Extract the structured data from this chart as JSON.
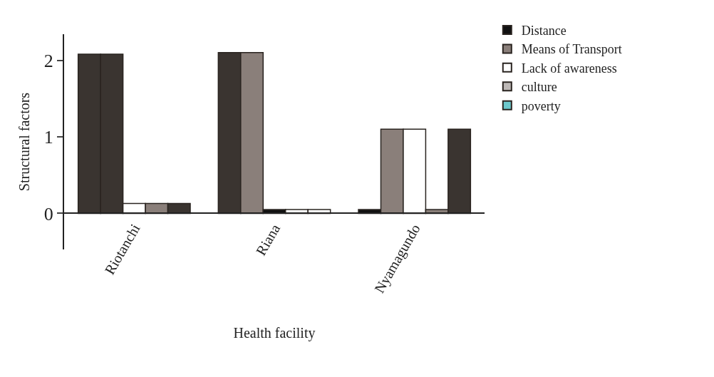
{
  "chart_data": {
    "type": "bar",
    "xlabel": "Health facility",
    "ylabel": "Structural factors",
    "categories": [
      "Riotanchi",
      "Riana",
      "Nyamagundo"
    ],
    "series": [
      {
        "name": "Distance",
        "color": "#111111",
        "colors": [
          "#3a3430",
          "#3a3430",
          "#111111"
        ],
        "values": [
          2.08,
          2.1,
          0.05
        ]
      },
      {
        "name": "Means of Transport",
        "color": "#8a7f7a",
        "colors": [
          "#3a3430",
          "#8a7f7a",
          "#8a7f7a"
        ],
        "values": [
          2.08,
          2.1,
          1.1
        ]
      },
      {
        "name": "Lack of awareness",
        "color": "#ffffff",
        "colors": [
          "#ffffff",
          "#111111",
          "#ffffff"
        ],
        "values": [
          0.13,
          0.05,
          1.1
        ]
      },
      {
        "name": "culture",
        "color": "#bdb8b6",
        "colors": [
          "#8a7f7a",
          "#ffffff",
          "#8a7f7a"
        ],
        "values": [
          0.13,
          0.05,
          0.05
        ]
      },
      {
        "name": "poverty",
        "color": "#6cc8cc",
        "colors": [
          "#3a3430",
          "#ffffff",
          "#3a3430"
        ],
        "values": [
          0.13,
          0.05,
          1.1
        ]
      }
    ],
    "ylim": [
      -0.47,
      2.34
    ],
    "yticks": [
      0,
      1,
      2
    ],
    "legend": "top right"
  }
}
